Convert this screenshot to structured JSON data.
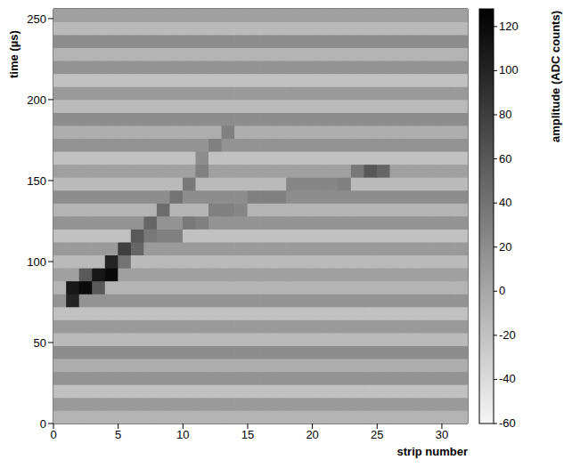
{
  "chart_data": {
    "type": "heatmap",
    "xlabel": "strip number",
    "ylabel": "time (µs)",
    "xlim": [
      0,
      32
    ],
    "ylim": [
      0,
      256
    ],
    "xticks": [
      0,
      5,
      10,
      15,
      20,
      25,
      30
    ],
    "yticks": [
      0,
      50,
      100,
      150,
      200,
      250
    ],
    "x_bins": [
      0,
      1,
      2,
      3,
      4,
      5,
      6,
      7,
      8,
      9,
      10,
      11,
      12,
      13,
      14,
      15,
      16,
      17,
      18,
      19,
      20,
      21,
      22,
      23,
      24,
      25,
      26,
      27,
      28,
      29,
      30,
      31,
      32
    ],
    "y_bins": [
      0,
      8,
      16,
      24,
      32,
      40,
      48,
      56,
      64,
      72,
      80,
      88,
      96,
      104,
      112,
      120,
      128,
      136,
      144,
      152,
      160,
      168,
      176,
      184,
      192,
      200,
      208,
      216,
      224,
      232,
      240,
      248,
      256
    ],
    "cells": [
      [
        -10,
        -10,
        -10,
        -10,
        -10,
        -10,
        -10,
        -10,
        -10,
        -10,
        -10,
        -10,
        -10,
        -10,
        -10,
        -10,
        -10,
        -10,
        -10,
        -10,
        -10,
        -10,
        -10,
        -10,
        -10,
        -10,
        -10,
        -10,
        -10,
        -10,
        -10,
        -10
      ],
      [
        10,
        10,
        10,
        10,
        10,
        10,
        10,
        10,
        10,
        10,
        10,
        10,
        10,
        10,
        10,
        10,
        10,
        10,
        10,
        10,
        10,
        10,
        10,
        10,
        10,
        10,
        10,
        10,
        10,
        10,
        10,
        10
      ],
      [
        -20,
        -20,
        -20,
        -20,
        -20,
        -20,
        -20,
        -20,
        -20,
        -20,
        -20,
        -20,
        -20,
        -20,
        -20,
        -20,
        -20,
        -20,
        -20,
        -20,
        -20,
        -20,
        -20,
        -20,
        -20,
        -20,
        -20,
        -20,
        -20,
        -20,
        -20,
        -20
      ],
      [
        15,
        15,
        15,
        15,
        15,
        15,
        15,
        15,
        15,
        15,
        15,
        15,
        15,
        15,
        15,
        15,
        15,
        15,
        15,
        15,
        15,
        15,
        15,
        15,
        15,
        15,
        15,
        15,
        15,
        15,
        15,
        15
      ],
      [
        -5,
        -5,
        -5,
        -5,
        -5,
        -5,
        -5,
        -5,
        -5,
        -5,
        -5,
        -5,
        -5,
        -5,
        -5,
        -5,
        -5,
        -5,
        -5,
        -5,
        -5,
        -5,
        -5,
        -5,
        -5,
        -5,
        -5,
        -5,
        -5,
        -5,
        -5,
        -5
      ],
      [
        20,
        20,
        20,
        20,
        20,
        20,
        20,
        20,
        20,
        20,
        20,
        20,
        20,
        20,
        20,
        20,
        20,
        20,
        20,
        20,
        20,
        20,
        20,
        20,
        20,
        20,
        20,
        20,
        20,
        20,
        20,
        20
      ],
      [
        -15,
        -15,
        -15,
        -15,
        -15,
        -15,
        -15,
        -15,
        -15,
        -15,
        -15,
        -15,
        -15,
        -15,
        -15,
        -15,
        -15,
        -15,
        -15,
        -15,
        -15,
        -15,
        -15,
        -15,
        -15,
        -15,
        -15,
        -15,
        -15,
        -15,
        -15,
        -15
      ],
      [
        10,
        10,
        10,
        10,
        10,
        10,
        10,
        10,
        10,
        10,
        10,
        10,
        10,
        10,
        10,
        10,
        10,
        10,
        10,
        10,
        10,
        10,
        10,
        10,
        10,
        10,
        10,
        10,
        10,
        10,
        10,
        10
      ],
      [
        -20,
        -20,
        -20,
        -20,
        -20,
        -20,
        -20,
        -20,
        -20,
        -20,
        -20,
        -20,
        -20,
        -20,
        -20,
        -20,
        -20,
        -20,
        -20,
        -20,
        -20,
        -20,
        -20,
        -20,
        -20,
        -20,
        -20,
        -20,
        -20,
        -20,
        -20,
        -20
      ],
      [
        15,
        100,
        15,
        15,
        15,
        15,
        15,
        15,
        15,
        15,
        15,
        15,
        15,
        15,
        15,
        15,
        15,
        15,
        15,
        15,
        15,
        15,
        15,
        15,
        15,
        15,
        15,
        15,
        15,
        15,
        15,
        15
      ],
      [
        -10,
        110,
        120,
        60,
        -10,
        -10,
        -10,
        -10,
        -10,
        -10,
        -10,
        -10,
        -10,
        -10,
        -10,
        -10,
        -10,
        -10,
        -10,
        -10,
        -10,
        -10,
        -10,
        -10,
        -10,
        -10,
        -10,
        -10,
        -10,
        -10,
        -10,
        -10
      ],
      [
        5,
        5,
        60,
        110,
        120,
        5,
        5,
        5,
        5,
        5,
        5,
        5,
        5,
        5,
        5,
        5,
        5,
        5,
        5,
        5,
        5,
        5,
        5,
        5,
        5,
        5,
        5,
        5,
        5,
        5,
        5,
        5
      ],
      [
        -15,
        -15,
        -15,
        -15,
        100,
        40,
        -15,
        -15,
        -15,
        -15,
        -15,
        -15,
        -15,
        -15,
        -15,
        -15,
        -15,
        -15,
        -15,
        -15,
        -15,
        -15,
        -15,
        -15,
        -15,
        -15,
        -15,
        -15,
        -15,
        -15,
        -15,
        -15
      ],
      [
        10,
        10,
        10,
        10,
        10,
        80,
        50,
        10,
        10,
        10,
        10,
        10,
        10,
        10,
        10,
        10,
        10,
        10,
        10,
        10,
        10,
        10,
        10,
        10,
        10,
        10,
        10,
        10,
        10,
        10,
        10,
        10
      ],
      [
        -20,
        -20,
        -20,
        -20,
        -20,
        -20,
        60,
        35,
        30,
        30,
        -20,
        -20,
        -20,
        -20,
        -20,
        -20,
        -20,
        -20,
        -20,
        -20,
        -20,
        -20,
        -20,
        -20,
        -20,
        -20,
        -20,
        -20,
        -20,
        -20,
        -20,
        -20
      ],
      [
        15,
        15,
        15,
        15,
        15,
        15,
        15,
        50,
        15,
        15,
        35,
        30,
        15,
        15,
        15,
        15,
        15,
        15,
        15,
        15,
        15,
        15,
        15,
        15,
        15,
        15,
        15,
        15,
        15,
        15,
        15,
        15
      ],
      [
        -10,
        -10,
        -10,
        -10,
        -10,
        -10,
        -10,
        -10,
        45,
        -10,
        -10,
        -10,
        30,
        30,
        25,
        -10,
        -10,
        -10,
        -10,
        -10,
        -10,
        -10,
        -10,
        -10,
        -10,
        -10,
        -10,
        -10,
        -10,
        -10,
        -10,
        -10
      ],
      [
        20,
        20,
        20,
        20,
        20,
        20,
        20,
        20,
        20,
        40,
        20,
        20,
        20,
        20,
        20,
        30,
        30,
        30,
        20,
        20,
        20,
        20,
        20,
        20,
        20,
        20,
        20,
        20,
        20,
        20,
        20,
        20
      ],
      [
        -15,
        -15,
        -15,
        -15,
        -15,
        -15,
        -15,
        -15,
        -15,
        -15,
        35,
        -15,
        -15,
        -15,
        -15,
        -15,
        -15,
        -15,
        25,
        25,
        25,
        25,
        30,
        -15,
        -15,
        -15,
        -15,
        -15,
        -15,
        -15,
        -15,
        -15
      ],
      [
        5,
        5,
        5,
        5,
        5,
        5,
        5,
        5,
        5,
        5,
        5,
        30,
        5,
        5,
        5,
        5,
        5,
        5,
        5,
        5,
        5,
        5,
        5,
        35,
        60,
        50,
        5,
        5,
        5,
        5,
        5,
        5
      ],
      [
        -20,
        -20,
        -20,
        -20,
        -20,
        -20,
        -20,
        -20,
        -20,
        -20,
        -20,
        20,
        -20,
        -20,
        -20,
        -20,
        -20,
        -20,
        -20,
        -20,
        -20,
        -20,
        -20,
        -20,
        -20,
        -20,
        -20,
        -20,
        -20,
        -20,
        -20,
        -20
      ],
      [
        15,
        15,
        15,
        15,
        15,
        15,
        15,
        15,
        15,
        15,
        15,
        15,
        30,
        15,
        15,
        15,
        15,
        15,
        15,
        15,
        15,
        15,
        15,
        15,
        15,
        15,
        15,
        15,
        15,
        15,
        15,
        15
      ],
      [
        -5,
        -5,
        -5,
        -5,
        -5,
        -5,
        -5,
        -5,
        -5,
        -5,
        -5,
        -5,
        -5,
        30,
        -5,
        -5,
        -5,
        -5,
        -5,
        -5,
        -5,
        -5,
        -5,
        -5,
        -5,
        -5,
        -5,
        -5,
        -5,
        -5,
        -5,
        -5
      ],
      [
        20,
        20,
        20,
        20,
        20,
        20,
        20,
        20,
        20,
        20,
        20,
        20,
        20,
        20,
        20,
        20,
        20,
        20,
        20,
        20,
        20,
        20,
        20,
        20,
        20,
        20,
        20,
        20,
        20,
        20,
        20,
        20
      ],
      [
        -15,
        -15,
        -15,
        -15,
        -15,
        -15,
        -15,
        -15,
        -15,
        -15,
        -15,
        -15,
        -15,
        -15,
        -15,
        -15,
        -15,
        -15,
        -15,
        -15,
        -15,
        -15,
        -15,
        -15,
        -15,
        -15,
        -15,
        -15,
        -15,
        -15,
        -15,
        -15
      ],
      [
        10,
        10,
        10,
        10,
        10,
        10,
        10,
        10,
        10,
        10,
        10,
        10,
        10,
        10,
        10,
        10,
        10,
        10,
        10,
        10,
        10,
        10,
        10,
        10,
        10,
        10,
        10,
        10,
        10,
        10,
        10,
        10
      ],
      [
        -20,
        -20,
        -20,
        -20,
        -20,
        -20,
        -20,
        -20,
        -20,
        -20,
        -20,
        -20,
        -20,
        -20,
        -20,
        -20,
        -20,
        -20,
        -20,
        -20,
        -20,
        -20,
        -20,
        -20,
        -20,
        -20,
        -20,
        -20,
        -20,
        -20,
        -20,
        -20
      ],
      [
        15,
        15,
        15,
        15,
        15,
        15,
        15,
        15,
        15,
        15,
        15,
        15,
        15,
        15,
        15,
        15,
        15,
        15,
        15,
        15,
        15,
        15,
        15,
        15,
        15,
        15,
        15,
        15,
        15,
        15,
        15,
        15
      ],
      [
        -10,
        -10,
        -10,
        -10,
        -10,
        -10,
        -10,
        -10,
        -10,
        -10,
        -10,
        -10,
        -10,
        -10,
        -10,
        -10,
        -10,
        -10,
        -10,
        -10,
        -10,
        -10,
        -10,
        -10,
        -10,
        -10,
        -10,
        -10,
        -10,
        -10,
        -10,
        -10
      ],
      [
        20,
        20,
        20,
        20,
        20,
        20,
        20,
        20,
        20,
        20,
        20,
        20,
        20,
        20,
        20,
        20,
        20,
        20,
        20,
        20,
        20,
        20,
        20,
        20,
        20,
        20,
        20,
        20,
        20,
        20,
        20,
        20
      ],
      [
        -15,
        -15,
        -15,
        -15,
        -15,
        -15,
        -15,
        -15,
        -15,
        -15,
        -15,
        -15,
        -15,
        -15,
        -15,
        -15,
        -15,
        -15,
        -15,
        -15,
        -15,
        -15,
        -15,
        -15,
        -15,
        -15,
        -15,
        -15,
        -15,
        -15,
        -15,
        -15
      ],
      [
        5,
        5,
        5,
        5,
        5,
        5,
        5,
        5,
        5,
        5,
        5,
        5,
        5,
        5,
        5,
        5,
        5,
        5,
        5,
        5,
        5,
        5,
        5,
        5,
        5,
        5,
        5,
        5,
        5,
        5,
        5,
        5
      ]
    ],
    "colorbar": {
      "label": "amplitude (ADC counts)",
      "range": [
        -60,
        128
      ],
      "ticks": [
        -60,
        -40,
        -20,
        0,
        20,
        40,
        60,
        80,
        100,
        120
      ]
    }
  }
}
